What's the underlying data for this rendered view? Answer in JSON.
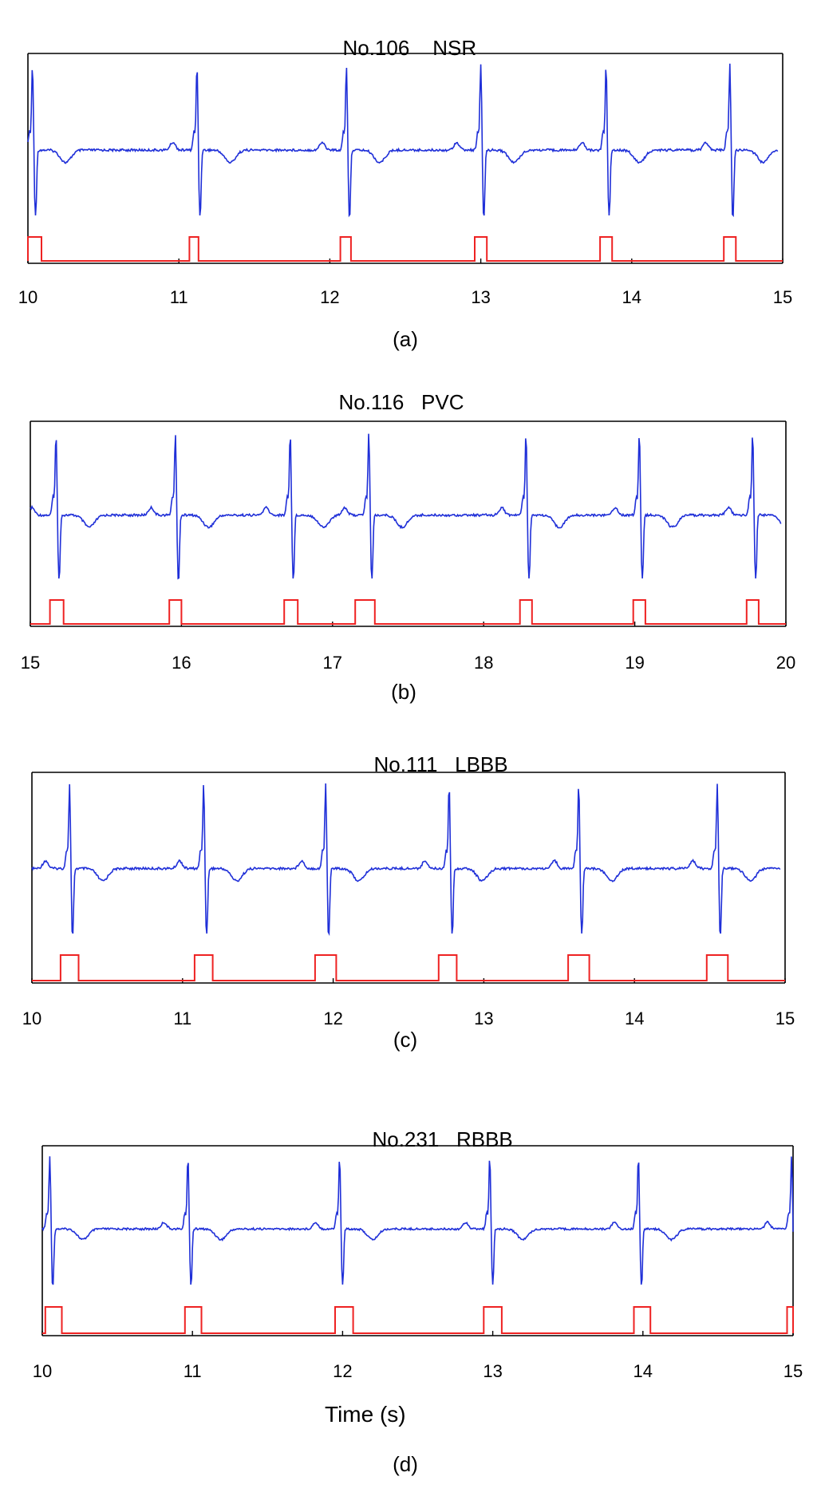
{
  "colors": {
    "ecg": "#1f2fd8",
    "detection": "#ee2222",
    "frame": "#000000"
  },
  "xlabel": "Time (s)",
  "chart_data": [
    {
      "type": "line",
      "panel": "a",
      "title_record": "No.106",
      "title_rhythm": "NSR",
      "caption": "(a)",
      "xlim": [
        10,
        15
      ],
      "xticks": [
        10,
        11,
        12,
        13,
        14,
        15
      ],
      "series": [
        {
          "kind": "ecg",
          "baseline": 0.58,
          "beats": [
            10.03,
            11.12,
            12.11,
            13.0,
            13.83,
            14.65
          ],
          "end": 14.97
        },
        {
          "kind": "detection",
          "pulses": [
            [
              10.0,
              10.09
            ],
            [
              11.07,
              11.13
            ],
            [
              12.07,
              12.14
            ],
            [
              12.96,
              13.04
            ],
            [
              13.79,
              13.87
            ],
            [
              14.61,
              14.69
            ]
          ]
        }
      ]
    },
    {
      "type": "line",
      "panel": "b",
      "title_record": "No.116",
      "title_rhythm": "PVC",
      "caption": "(b)",
      "xlim": [
        15,
        20
      ],
      "xticks": [
        15,
        16,
        17,
        18,
        19,
        20
      ],
      "series": [
        {
          "kind": "ecg",
          "baseline": 0.58,
          "beats": [
            15.17,
            15.96,
            16.72,
            17.24,
            18.28,
            19.03,
            19.78
          ],
          "end": 19.97
        },
        {
          "kind": "detection",
          "pulses": [
            [
              15.13,
              15.22
            ],
            [
              15.92,
              16.0
            ],
            [
              16.68,
              16.77
            ],
            [
              17.15,
              17.28
            ],
            [
              18.24,
              18.32
            ],
            [
              18.99,
              19.07
            ],
            [
              19.74,
              19.82
            ]
          ]
        }
      ]
    },
    {
      "type": "line",
      "panel": "c",
      "title_record": "No.111",
      "title_rhythm": "LBBB",
      "caption": "(c)",
      "xlim": [
        10,
        15
      ],
      "xticks": [
        10,
        11,
        12,
        13,
        14,
        15
      ],
      "series": [
        {
          "kind": "ecg",
          "baseline": 0.58,
          "beats": [
            10.25,
            11.14,
            11.95,
            12.77,
            13.63,
            14.55
          ],
          "end": 14.97
        },
        {
          "kind": "detection",
          "pulses": [
            [
              10.19,
              10.31
            ],
            [
              11.08,
              11.2
            ],
            [
              11.88,
              12.02
            ],
            [
              12.7,
              12.82
            ],
            [
              13.56,
              13.7
            ],
            [
              14.48,
              14.62
            ]
          ]
        }
      ]
    },
    {
      "type": "line",
      "panel": "d",
      "title_record": "No.231",
      "title_rhythm": "RBBB",
      "caption": "(d)",
      "xlim": [
        10,
        15
      ],
      "xticks": [
        10,
        11,
        12,
        13,
        14,
        15
      ],
      "series": [
        {
          "kind": "ecg",
          "baseline": 0.58,
          "beats": [
            10.05,
            10.97,
            11.98,
            12.98,
            13.97,
            14.99
          ],
          "end": 15.0
        },
        {
          "kind": "detection",
          "pulses": [
            [
              10.02,
              10.13
            ],
            [
              10.95,
              11.06
            ],
            [
              11.95,
              12.07
            ],
            [
              12.94,
              13.06
            ],
            [
              13.94,
              14.05
            ],
            [
              14.96,
              15.0
            ]
          ]
        }
      ]
    }
  ]
}
